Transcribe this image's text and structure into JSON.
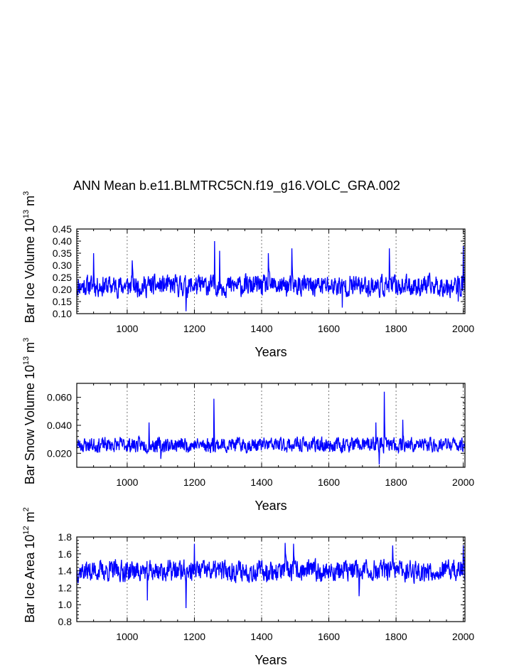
{
  "title": "ANN Mean b.e11.BLMTRC5CN.f19_g16.VOLC_GRA.002",
  "line_color": "#0000ff",
  "chart_data": [
    {
      "type": "line",
      "ylabel": "Bar Ice Volume 10",
      "ylabel_exp": "13",
      "ylabel_unit": "m",
      "ylabel_unit_exp": "3",
      "xlabel": "Years",
      "xlim": [
        850,
        2005
      ],
      "ylim": [
        0.1,
        0.45
      ],
      "xticks": [
        "1000",
        "1200",
        "1400",
        "1600",
        "1800",
        "2000"
      ],
      "yticks": [
        "0.10",
        "0.15",
        "0.20",
        "0.25",
        "0.30",
        "0.35",
        "0.40",
        "0.45"
      ],
      "series_x_range": [
        850,
        2005
      ],
      "seed": 11,
      "mean": 0.215,
      "noise": 0.045,
      "peaks": [
        [
          900,
          0.35
        ],
        [
          1015,
          0.32
        ],
        [
          1260,
          0.4
        ],
        [
          1275,
          0.36
        ],
        [
          1420,
          0.35
        ],
        [
          1490,
          0.37
        ],
        [
          1780,
          0.37
        ],
        [
          2000,
          0.38
        ]
      ],
      "dips": [
        [
          1175,
          0.11
        ],
        [
          1640,
          0.125
        ],
        [
          1985,
          0.15
        ]
      ],
      "min": 0.11,
      "max": 0.4
    },
    {
      "type": "line",
      "ylabel": "Bar Snow Volume 10",
      "ylabel_exp": "13",
      "ylabel_unit": "m",
      "ylabel_unit_exp": "3",
      "xlabel": "Years",
      "xlim": [
        850,
        2005
      ],
      "ylim": [
        0.01,
        0.07
      ],
      "xticks": [
        "1000",
        "1200",
        "1400",
        "1600",
        "1800",
        "2000"
      ],
      "yticks": [
        "0.020",
        "0.040",
        "0.060"
      ],
      "seed": 23,
      "mean": 0.026,
      "noise": 0.0055,
      "peaks": [
        [
          1258,
          0.059
        ],
        [
          1765,
          0.064
        ],
        [
          1820,
          0.044
        ],
        [
          1740,
          0.042
        ],
        [
          1065,
          0.042
        ]
      ],
      "dips": [
        [
          1750,
          0.012
        ],
        [
          1100,
          0.016
        ]
      ],
      "min": 0.012,
      "max": 0.064
    },
    {
      "type": "line",
      "ylabel": "Bar Ice Area 10",
      "ylabel_exp": "12",
      "ylabel_unit": "m",
      "ylabel_unit_exp": "2",
      "xlabel": "Years",
      "xlim": [
        850,
        2005
      ],
      "ylim": [
        0.8,
        1.8
      ],
      "xticks": [
        "1000",
        "1200",
        "1400",
        "1600",
        "1800",
        "2000"
      ],
      "yticks": [
        "0.8",
        "1.0",
        "1.2",
        "1.4",
        "1.6",
        "1.8"
      ],
      "seed": 37,
      "mean": 1.4,
      "noise": 0.13,
      "peaks": [
        [
          1200,
          1.72
        ],
        [
          1470,
          1.73
        ],
        [
          1495,
          1.72
        ],
        [
          1790,
          1.7
        ],
        [
          2000,
          1.7
        ]
      ],
      "dips": [
        [
          1175,
          0.96
        ],
        [
          1060,
          1.05
        ],
        [
          1690,
          1.1
        ]
      ],
      "min": 0.96,
      "max": 1.73
    }
  ]
}
